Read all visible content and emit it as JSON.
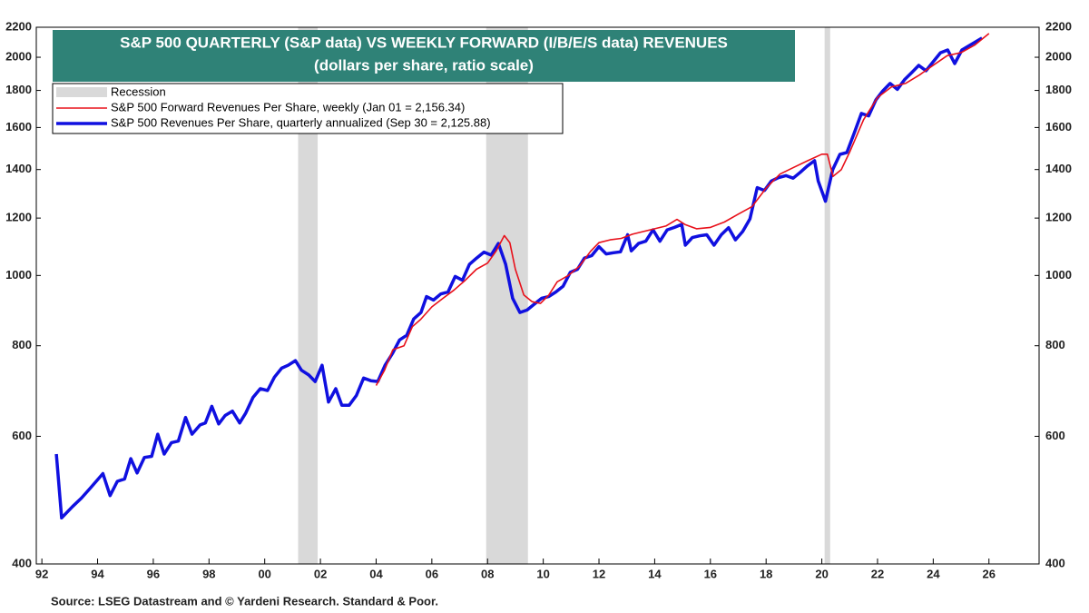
{
  "chart_data": {
    "type": "line",
    "title": "S&P 500 QUARTERLY (S&P data) VS WEEKLY FORWARD (I/B/E/S data) REVENUES",
    "subtitle": "(dollars per share, ratio scale)",
    "source": "Source: LSEG Datastream and © Yardeni Research. Standard & Poor.",
    "log_scale": true,
    "grid": false,
    "legend_position": "upper left",
    "recession_label": "Recession",
    "recession_color": "#d9d9d9",
    "recessions": [
      [
        2001.2,
        2001.9
      ],
      [
        2007.95,
        2009.45
      ],
      [
        2020.1,
        2020.3
      ]
    ],
    "xlim": [
      1991.8,
      2027.8
    ],
    "xticks": [
      {
        "value": 1992,
        "label": "92"
      },
      {
        "value": 1994,
        "label": "94"
      },
      {
        "value": 1996,
        "label": "96"
      },
      {
        "value": 1998,
        "label": "98"
      },
      {
        "value": 2000,
        "label": "00"
      },
      {
        "value": 2002,
        "label": "02"
      },
      {
        "value": 2004,
        "label": "04"
      },
      {
        "value": 2006,
        "label": "06"
      },
      {
        "value": 2008,
        "label": "08"
      },
      {
        "value": 2010,
        "label": "10"
      },
      {
        "value": 2012,
        "label": "12"
      },
      {
        "value": 2014,
        "label": "14"
      },
      {
        "value": 2016,
        "label": "16"
      },
      {
        "value": 2018,
        "label": "18"
      },
      {
        "value": 2020,
        "label": "20"
      },
      {
        "value": 2022,
        "label": "22"
      },
      {
        "value": 2024,
        "label": "24"
      },
      {
        "value": 2026,
        "label": "26"
      }
    ],
    "ylim": [
      400,
      2200
    ],
    "yticks": [
      400,
      600,
      800,
      1000,
      1200,
      1400,
      1600,
      1800,
      2000,
      2200
    ],
    "y2lim": [
      400,
      2200
    ],
    "y2ticks": [
      400,
      600,
      800,
      1000,
      1200,
      1400,
      1600,
      1800,
      2000,
      2200
    ],
    "series": [
      {
        "name": "S&P 500 Forward Revenues Per Share, weekly (Jan 01 = 2,156.34)",
        "color": "#e8101a",
        "width": 1.6,
        "x": [
          2004.0,
          2004.3,
          2004.6,
          2005.0,
          2005.3,
          2005.6,
          2006.0,
          2006.4,
          2006.8,
          2007.2,
          2007.6,
          2008.0,
          2008.3,
          2008.6,
          2008.8,
          2009.0,
          2009.3,
          2009.6,
          2009.9,
          2010.2,
          2010.5,
          2010.9,
          2011.3,
          2011.7,
          2012.0,
          2012.4,
          2012.8,
          2013.2,
          2013.6,
          2014.0,
          2014.4,
          2014.8,
          2015.1,
          2015.5,
          2016.0,
          2016.5,
          2017.0,
          2017.5,
          2018.0,
          2018.5,
          2019.0,
          2019.5,
          2020.0,
          2020.2,
          2020.4,
          2020.7,
          2021.0,
          2021.5,
          2022.0,
          2022.5,
          2023.0,
          2023.5,
          2024.0,
          2024.5,
          2025.0,
          2025.5,
          2026.0
        ],
        "values": [
          705,
          740,
          790,
          800,
          850,
          870,
          905,
          930,
          955,
          985,
          1020,
          1040,
          1080,
          1135,
          1110,
          1020,
          940,
          920,
          915,
          940,
          980,
          1000,
          1030,
          1080,
          1110,
          1120,
          1125,
          1140,
          1150,
          1160,
          1170,
          1195,
          1175,
          1160,
          1165,
          1185,
          1215,
          1245,
          1320,
          1380,
          1410,
          1440,
          1470,
          1470,
          1370,
          1400,
          1480,
          1640,
          1760,
          1820,
          1840,
          1890,
          1950,
          2010,
          2030,
          2080,
          2156.34
        ]
      },
      {
        "name": "S&P 500 Revenues Per Share, quarterly annualized (Sep 30 = 2,125.88)",
        "color": "#1010e0",
        "width": 3.5,
        "x": [
          1992.52,
          1992.71,
          1993.1,
          1993.42,
          1993.74,
          1994.19,
          1994.45,
          1994.71,
          1994.97,
          1995.19,
          1995.42,
          1995.68,
          1995.94,
          1996.16,
          1996.39,
          1996.65,
          1996.9,
          1997.16,
          1997.39,
          1997.68,
          1997.87,
          1998.1,
          1998.35,
          1998.58,
          1998.84,
          1999.1,
          1999.32,
          1999.58,
          1999.84,
          2000.1,
          2000.35,
          2000.61,
          2000.84,
          2001.1,
          2001.32,
          2001.58,
          2001.81,
          2002.06,
          2002.29,
          2002.55,
          2002.77,
          2003.03,
          2003.29,
          2003.55,
          2003.81,
          2004.06,
          2004.32,
          2004.58,
          2004.84,
          2005.1,
          2005.35,
          2005.61,
          2005.81,
          2006.06,
          2006.32,
          2006.58,
          2006.84,
          2007.1,
          2007.35,
          2007.61,
          2007.87,
          2008.13,
          2008.39,
          2008.65,
          2008.9,
          2009.16,
          2009.42,
          2009.68,
          2009.94,
          2010.19,
          2010.45,
          2010.71,
          2010.97,
          2011.23,
          2011.48,
          2011.74,
          2012.0,
          2012.26,
          2012.52,
          2012.77,
          2013.03,
          2013.16,
          2013.42,
          2013.68,
          2013.94,
          2014.19,
          2014.45,
          2014.71,
          2014.97,
          2015.1,
          2015.35,
          2015.61,
          2015.87,
          2016.13,
          2016.39,
          2016.65,
          2016.9,
          2017.16,
          2017.42,
          2017.68,
          2017.94,
          2018.19,
          2018.45,
          2018.71,
          2018.97,
          2019.23,
          2019.48,
          2019.74,
          2019.87,
          2020.13,
          2020.39,
          2020.65,
          2020.9,
          2021.16,
          2021.42,
          2021.68,
          2021.94,
          2022.19,
          2022.45,
          2022.71,
          2022.97,
          2023.23,
          2023.48,
          2023.74,
          2024.0,
          2024.26,
          2024.52,
          2024.77,
          2025.03,
          2025.75
        ],
        "values": [
          567,
          463,
          480,
          493,
          509,
          533,
          497,
          520,
          524,
          559,
          534,
          561,
          563,
          604,
          567,
          588,
          591,
          637,
          604,
          622,
          626,
          660,
          624,
          641,
          650,
          626,
          646,
          679,
          698,
          694,
          724,
          745,
          752,
          763,
          740,
          729,
          714,
          752,
          669,
          698,
          662,
          662,
          683,
          722,
          716,
          714,
          752,
          780,
          815,
          827,
          871,
          889,
          935,
          925,
          943,
          949,
          997,
          985,
          1036,
          1057,
          1077,
          1067,
          1107,
          1036,
          930,
          889,
          896,
          913,
          930,
          935,
          949,
          966,
          1010,
          1020,
          1057,
          1065,
          1096,
          1071,
          1075,
          1078,
          1138,
          1081,
          1107,
          1115,
          1156,
          1115,
          1156,
          1165,
          1176,
          1101,
          1128,
          1134,
          1138,
          1101,
          1138,
          1164,
          1120,
          1150,
          1197,
          1322,
          1310,
          1350,
          1365,
          1373,
          1362,
          1388,
          1416,
          1440,
          1350,
          1266,
          1400,
          1469,
          1478,
          1571,
          1673,
          1660,
          1746,
          1797,
          1840,
          1806,
          1862,
          1905,
          1949,
          1916,
          1972,
          2029,
          2047,
          1960,
          2047,
          2125.88
        ]
      }
    ]
  }
}
